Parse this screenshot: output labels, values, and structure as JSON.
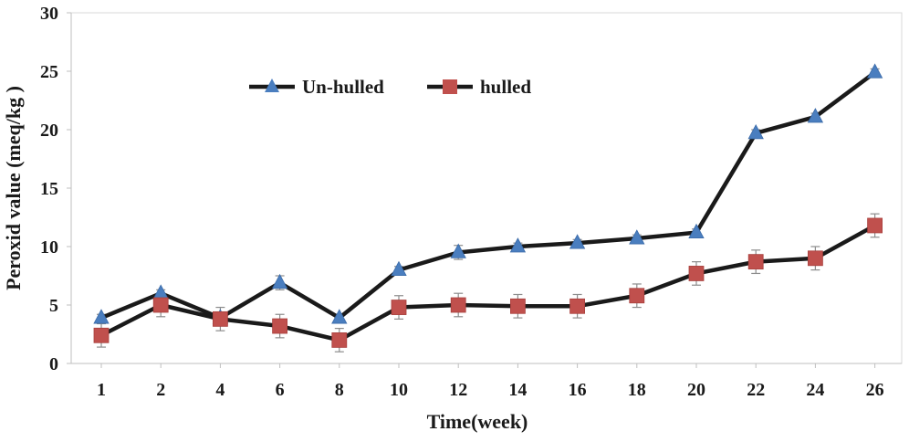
{
  "chart_data": {
    "type": "line",
    "xlabel": "Time(week)",
    "ylabel": "Peroxid value (meq/kg )",
    "categories": [
      "1",
      "2",
      "4",
      "6",
      "8",
      "10",
      "12",
      "14",
      "16",
      "18",
      "20",
      "22",
      "24",
      "26"
    ],
    "ylim": [
      0,
      30
    ],
    "yticks": [
      0,
      5,
      10,
      15,
      20,
      25,
      30
    ],
    "grid": false,
    "legend_position": "top-left",
    "series": [
      {
        "name": "Un-hulled",
        "marker": "triangle",
        "marker_color": "#4a7ebf",
        "line_color": "#1a1a1a",
        "values": [
          3.9,
          6.0,
          3.9,
          6.9,
          3.9,
          8.0,
          9.5,
          10.0,
          10.3,
          10.7,
          11.2,
          19.7,
          21.1,
          24.9
        ],
        "errors": [
          0.3,
          0.3,
          0.3,
          0.6,
          0.3,
          0.3,
          0.6,
          0.3,
          0.3,
          0.3,
          0.3,
          0.3,
          0.3,
          0.3
        ]
      },
      {
        "name": "hulled",
        "marker": "square",
        "marker_color": "#c0504d",
        "line_color": "#1a1a1a",
        "values": [
          2.4,
          5.0,
          3.8,
          3.2,
          2.0,
          4.8,
          5.0,
          4.9,
          4.9,
          5.8,
          7.7,
          8.7,
          9.0,
          11.8
        ],
        "errors": [
          1.0,
          1.0,
          1.0,
          1.0,
          1.0,
          1.0,
          1.0,
          1.0,
          1.0,
          1.0,
          1.0,
          1.0,
          1.0,
          1.0
        ]
      }
    ]
  }
}
